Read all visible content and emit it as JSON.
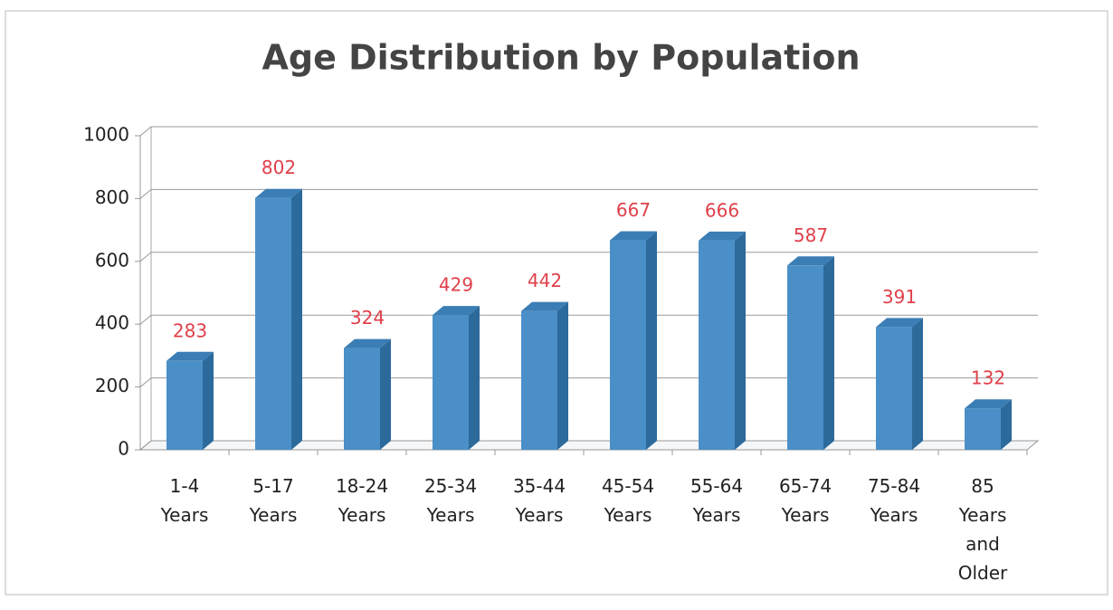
{
  "chart_data": {
    "type": "bar3d",
    "title": "Age Distribution by Population",
    "categories": [
      "1-4 Years",
      "5-17 Years",
      "18-24 Years",
      "25-34 Years",
      "35-44 Years",
      "45-54 Years",
      "55-64 Years",
      "65-74 Years",
      "75-84 Years",
      "85 Years and Older"
    ],
    "values": [
      283,
      802,
      324,
      429,
      442,
      667,
      666,
      587,
      391,
      132
    ],
    "color": "#4a8fc7",
    "label_color": "#e0404a",
    "ylim": [
      0,
      1000
    ],
    "yticks": [
      0,
      200,
      400,
      600,
      800,
      1000
    ],
    "grid": true
  }
}
